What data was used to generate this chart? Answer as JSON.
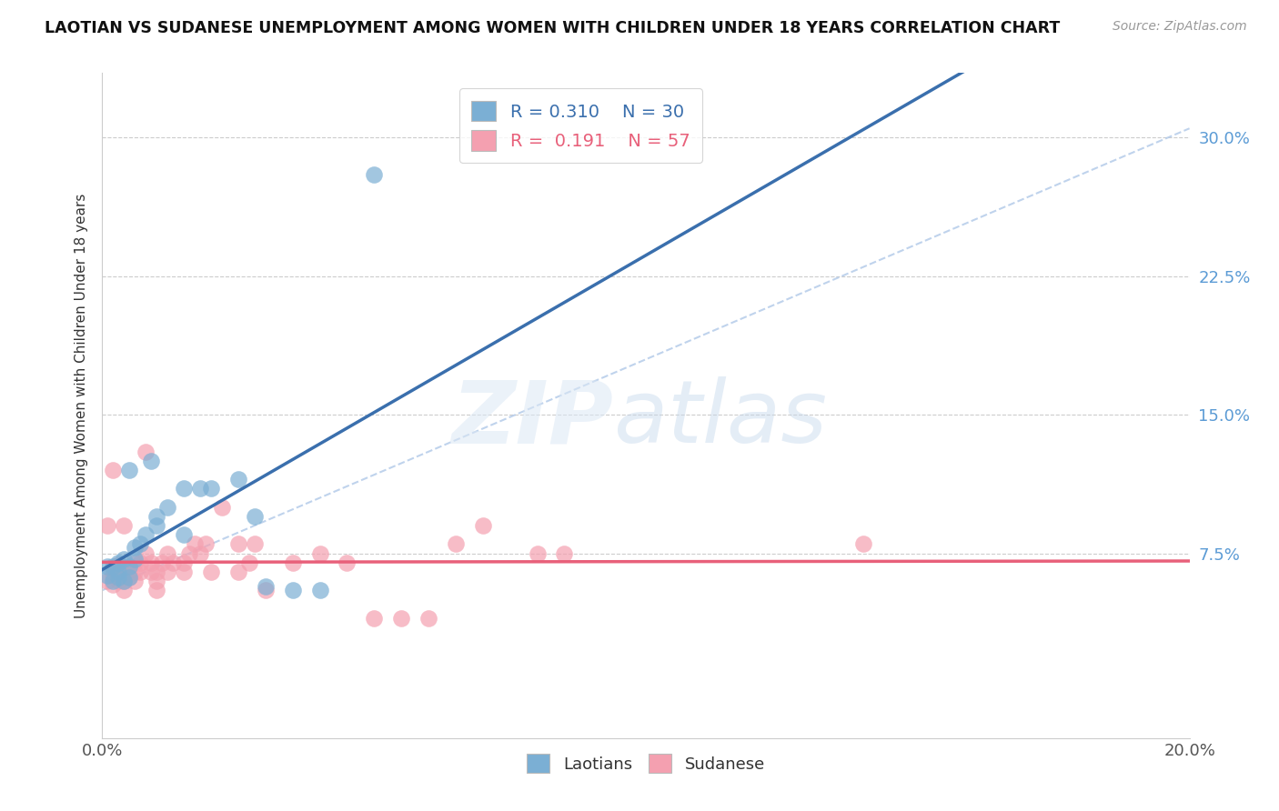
{
  "title": "LAOTIAN VS SUDANESE UNEMPLOYMENT AMONG WOMEN WITH CHILDREN UNDER 18 YEARS CORRELATION CHART",
  "source": "Source: ZipAtlas.com",
  "ylabel": "Unemployment Among Women with Children Under 18 years",
  "ytick_labels": [
    "7.5%",
    "15.0%",
    "22.5%",
    "30.0%"
  ],
  "ytick_values": [
    0.075,
    0.15,
    0.225,
    0.3
  ],
  "xlim": [
    0.0,
    0.2
  ],
  "ylim": [
    -0.025,
    0.335
  ],
  "laotian_color": "#7bafd4",
  "sudanese_color": "#f4a0b0",
  "laotian_line_color": "#3a6fad",
  "sudanese_line_color": "#e8607a",
  "diagonal_color": "#b0c8e8",
  "legend_R_laotian": "0.310",
  "legend_N_laotian": "30",
  "legend_R_sudanese": "0.191",
  "legend_N_sudanese": "57",
  "laotian_x": [
    0.001,
    0.001,
    0.002,
    0.002,
    0.003,
    0.003,
    0.003,
    0.004,
    0.004,
    0.005,
    0.005,
    0.005,
    0.006,
    0.006,
    0.007,
    0.008,
    0.009,
    0.01,
    0.01,
    0.012,
    0.015,
    0.015,
    0.018,
    0.02,
    0.025,
    0.028,
    0.03,
    0.035,
    0.04,
    0.05
  ],
  "laotian_y": [
    0.063,
    0.068,
    0.06,
    0.068,
    0.062,
    0.065,
    0.07,
    0.06,
    0.072,
    0.062,
    0.068,
    0.12,
    0.072,
    0.078,
    0.08,
    0.085,
    0.125,
    0.09,
    0.095,
    0.1,
    0.11,
    0.085,
    0.11,
    0.11,
    0.115,
    0.095,
    0.057,
    0.055,
    0.055,
    0.28
  ],
  "sudanese_x": [
    0.001,
    0.001,
    0.002,
    0.002,
    0.002,
    0.002,
    0.003,
    0.003,
    0.003,
    0.003,
    0.004,
    0.004,
    0.004,
    0.004,
    0.005,
    0.005,
    0.005,
    0.006,
    0.006,
    0.006,
    0.007,
    0.007,
    0.008,
    0.008,
    0.009,
    0.009,
    0.01,
    0.01,
    0.01,
    0.011,
    0.012,
    0.012,
    0.013,
    0.015,
    0.015,
    0.016,
    0.017,
    0.018,
    0.019,
    0.02,
    0.022,
    0.025,
    0.025,
    0.027,
    0.028,
    0.03,
    0.035,
    0.04,
    0.045,
    0.05,
    0.055,
    0.06,
    0.065,
    0.07,
    0.08,
    0.085,
    0.14
  ],
  "sudanese_y": [
    0.06,
    0.09,
    0.058,
    0.063,
    0.067,
    0.12,
    0.06,
    0.063,
    0.065,
    0.069,
    0.055,
    0.06,
    0.065,
    0.09,
    0.062,
    0.064,
    0.068,
    0.06,
    0.065,
    0.07,
    0.065,
    0.07,
    0.075,
    0.13,
    0.065,
    0.07,
    0.055,
    0.06,
    0.065,
    0.07,
    0.065,
    0.075,
    0.07,
    0.065,
    0.07,
    0.075,
    0.08,
    0.075,
    0.08,
    0.065,
    0.1,
    0.065,
    0.08,
    0.07,
    0.08,
    0.055,
    0.07,
    0.075,
    0.07,
    0.04,
    0.04,
    0.04,
    0.08,
    0.09,
    0.075,
    0.075,
    0.08
  ]
}
